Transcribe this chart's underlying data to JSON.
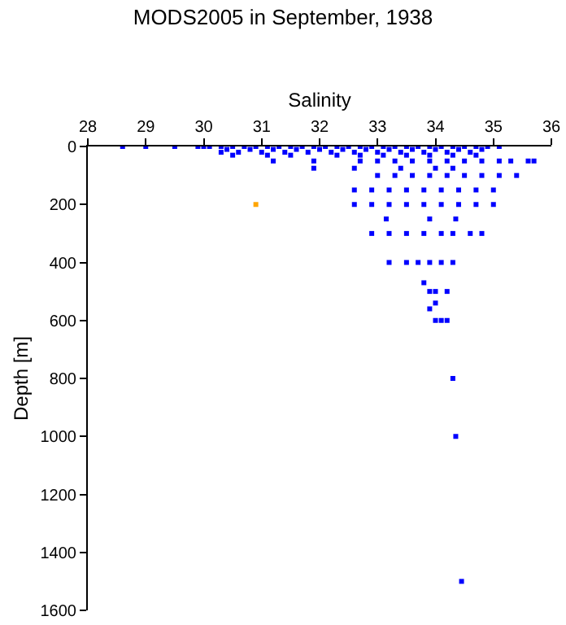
{
  "chart_data": {
    "type": "scatter",
    "title": "MODS2005 in September, 1938",
    "xlabel": "Salinity",
    "ylabel": "Depth [m]",
    "xlim": [
      28,
      36
    ],
    "xticks": [
      28,
      29,
      30,
      31,
      32,
      33,
      34,
      35,
      36
    ],
    "ylim": [
      1600,
      0
    ],
    "yticks": [
      0,
      200,
      400,
      600,
      800,
      1000,
      1200,
      1400,
      1600
    ],
    "marker": "square",
    "series": [
      {
        "color": "#0000ff",
        "x": [
          28.6,
          29.0,
          29.5,
          29.9,
          30.0,
          30.1,
          30.3,
          30.5,
          30.7,
          30.9,
          31.1,
          31.3,
          31.5,
          31.7,
          31.9,
          32.1,
          32.3,
          32.5,
          32.7,
          32.9,
          33.1,
          33.3,
          33.5,
          33.7,
          33.9,
          34.1,
          34.3,
          34.5,
          34.7,
          34.9,
          35.1,
          30.4,
          30.8,
          31.2,
          31.6,
          32.0,
          32.4,
          32.8,
          33.2,
          33.6,
          34.0,
          34.4,
          34.8,
          30.3,
          30.6,
          31.0,
          31.4,
          31.8,
          32.2,
          32.6,
          33.0,
          33.4,
          33.8,
          34.2,
          34.6,
          30.5,
          31.1,
          31.5,
          32.3,
          32.7,
          33.1,
          33.5,
          33.9,
          34.3,
          34.7,
          31.2,
          31.9,
          32.7,
          33.0,
          33.3,
          33.6,
          33.9,
          34.2,
          34.5,
          34.8,
          35.1,
          35.3,
          35.6,
          35.7,
          31.9,
          32.6,
          33.4,
          34.0,
          34.3,
          33.0,
          33.3,
          33.6,
          33.9,
          34.2,
          34.5,
          34.8,
          35.1,
          35.4,
          32.6,
          32.9,
          33.2,
          33.5,
          33.8,
          34.1,
          34.4,
          34.7,
          35.0,
          32.6,
          32.9,
          33.2,
          33.5,
          33.8,
          34.1,
          34.4,
          34.7,
          35.0,
          33.15,
          33.9,
          34.35,
          32.9,
          33.2,
          33.5,
          33.8,
          34.1,
          34.3,
          34.6,
          34.8,
          33.2,
          33.5,
          33.7,
          33.9,
          34.1,
          34.3,
          33.8,
          33.9,
          34.0,
          34.2,
          34.0,
          33.9,
          34.0,
          34.1,
          34.2,
          34.3,
          34.35,
          34.45
        ],
        "values": [
          0,
          0,
          0,
          0,
          0,
          0,
          0,
          0,
          0,
          0,
          0,
          0,
          0,
          0,
          0,
          0,
          0,
          0,
          0,
          0,
          0,
          0,
          0,
          0,
          0,
          0,
          0,
          0,
          0,
          0,
          0,
          10,
          10,
          10,
          10,
          10,
          10,
          10,
          10,
          10,
          10,
          10,
          10,
          20,
          20,
          20,
          20,
          20,
          20,
          20,
          20,
          20,
          20,
          20,
          20,
          30,
          30,
          30,
          30,
          30,
          30,
          30,
          30,
          30,
          30,
          50,
          50,
          50,
          50,
          50,
          50,
          50,
          50,
          50,
          50,
          50,
          50,
          50,
          50,
          75,
          75,
          75,
          75,
          75,
          100,
          100,
          100,
          100,
          100,
          100,
          100,
          100,
          100,
          150,
          150,
          150,
          150,
          150,
          150,
          150,
          150,
          150,
          200,
          200,
          200,
          200,
          200,
          200,
          200,
          200,
          200,
          250,
          250,
          250,
          300,
          300,
          300,
          300,
          300,
          300,
          300,
          300,
          400,
          400,
          400,
          400,
          400,
          400,
          470,
          500,
          500,
          500,
          540,
          560,
          600,
          600,
          600,
          800,
          1000,
          1500
        ]
      },
      {
        "color": "#ffa500",
        "x": [
          30.9
        ],
        "values": [
          200
        ]
      }
    ]
  }
}
